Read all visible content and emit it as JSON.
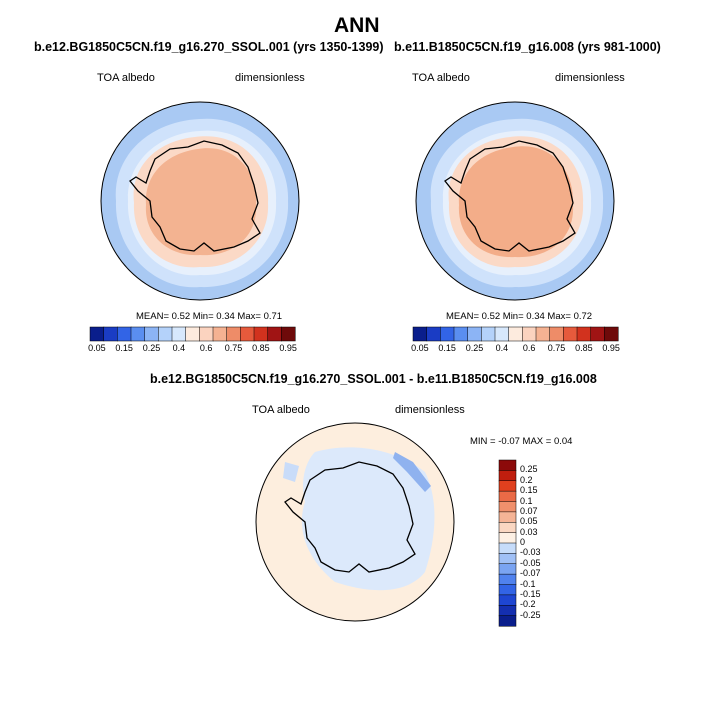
{
  "chart_data": {
    "type": "polar-contour-map",
    "title": "ANN",
    "colors": {
      "map_scale": [
        "#0a1e8c",
        "#1a3cc4",
        "#3264e6",
        "#5a8ef0",
        "#8cb4f5",
        "#b4d2fa",
        "#d7e8fc",
        "#fdebde",
        "#fbd3bf",
        "#f5b292",
        "#ee8c68",
        "#e65a3c",
        "#d2321e",
        "#a01414",
        "#6e0a0a"
      ],
      "diff_scale": [
        "#0a1e8c",
        "#142fb0",
        "#1e46d2",
        "#3264e6",
        "#5082ee",
        "#7aa4f2",
        "#a0c0f6",
        "#c6dcfa",
        "#fdf0e4",
        "#fad7c2",
        "#f5b496",
        "#f0906c",
        "#ea6a46",
        "#e0401e",
        "#c01e0e",
        "#8c0a0a"
      ],
      "land_outline": "#000000"
    },
    "panels": [
      {
        "id": "top-left",
        "case": "b.e12.BG1850C5CN.f19_g16.270_SSOL.001 (yrs 1350-1399)",
        "variable": "TOA albedo",
        "units": "dimensionless",
        "stats": {
          "MEAN": "0.52",
          "Min": "0.34",
          "Max": "0.71"
        },
        "colorbar_ticks": [
          "0.05",
          "0.15",
          "0.25",
          "0.4",
          "0.6",
          "0.75",
          "0.85",
          "0.95"
        ]
      },
      {
        "id": "top-right",
        "case": "b.e11.B1850C5CN.f19_g16.008 (yrs 981-1000)",
        "variable": "TOA albedo",
        "units": "dimensionless",
        "stats": {
          "MEAN": "0.52",
          "Min": "0.34",
          "Max": "0.72"
        },
        "colorbar_ticks": [
          "0.05",
          "0.15",
          "0.25",
          "0.4",
          "0.6",
          "0.75",
          "0.85",
          "0.95"
        ]
      },
      {
        "id": "difference",
        "case": "b.e12.BG1850C5CN.f19_g16.270_SSOL.001 - b.e11.B1850C5CN.f19_g16.008",
        "variable": "TOA albedo",
        "units": "dimensionless",
        "stats": {
          "MIN": "-0.07",
          "MAX": "0.04"
        },
        "colorbar_ticks": [
          "0.25",
          "0.2",
          "0.15",
          "0.1",
          "0.07",
          "0.05",
          "0.03",
          "0",
          "-0.03",
          "-0.05",
          "-0.07",
          "-0.1",
          "-0.15",
          "-0.2",
          "-0.25"
        ]
      }
    ]
  }
}
